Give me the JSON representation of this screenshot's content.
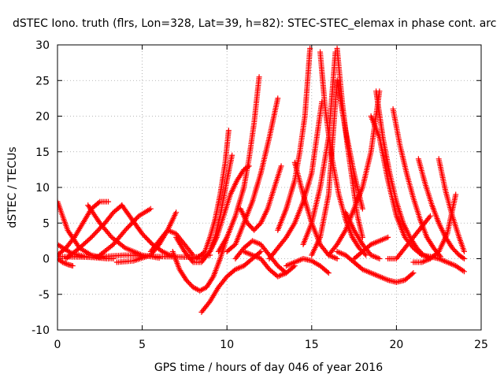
{
  "chart_data": {
    "type": "scatter",
    "title": "dSTEC Iono. truth (flrs, Lon=328, Lat=39, h=82): STEC-STEC_elemax in phase cont. arc",
    "xlabel": "GPS time / hours of day 046 of year 2016",
    "ylabel": "dSTEC  / TECUs",
    "xlim": [
      0,
      25
    ],
    "ylim": [
      -10,
      30
    ],
    "xticks": [
      0,
      5,
      10,
      15,
      20,
      25
    ],
    "yticks": [
      -10,
      -5,
      0,
      5,
      10,
      15,
      20,
      25,
      30
    ],
    "grid": true,
    "marker": "+",
    "color": "#ff0000",
    "series": [
      {
        "x": [
          0.0,
          0.6,
          1.3,
          2.0,
          2.7,
          3.3
        ],
        "y": [
          8.0,
          4.0,
          1.5,
          0.5,
          0.1,
          0.0
        ]
      },
      {
        "x": [
          0.0,
          0.3,
          0.6,
          0.9
        ],
        "y": [
          0.0,
          -0.5,
          -0.8,
          -1.0
        ]
      },
      {
        "x": [
          0.0,
          0.8,
          1.6,
          2.4,
          3.0
        ],
        "y": [
          2.0,
          0.8,
          0.3,
          0.1,
          0.0
        ]
      },
      {
        "x": [
          0.0,
          0.5,
          1.0,
          1.5,
          2.0,
          2.5,
          3.0
        ],
        "y": [
          0.5,
          1.5,
          3.0,
          5.0,
          7.0,
          8.0,
          8.0
        ]
      },
      {
        "x": [
          1.8,
          2.5,
          3.2,
          4.0,
          5.0,
          6.0
        ],
        "y": [
          7.5,
          5.0,
          3.0,
          1.5,
          0.5,
          0.1
        ]
      },
      {
        "x": [
          0.5,
          1.3,
          2.0,
          2.8,
          3.3,
          3.8
        ],
        "y": [
          0.0,
          1.5,
          3.0,
          5.0,
          6.5,
          7.5
        ]
      },
      {
        "x": [
          3.8,
          4.4,
          5.0,
          5.6,
          6.2,
          6.8
        ],
        "y": [
          7.5,
          5.5,
          3.5,
          2.0,
          1.0,
          0.3
        ]
      },
      {
        "x": [
          2.5,
          3.3,
          4.0,
          4.8,
          5.5
        ],
        "y": [
          0.5,
          2.0,
          4.0,
          6.0,
          7.0
        ]
      },
      {
        "x": [
          0.0,
          2.0,
          4.0,
          6.0,
          8.0,
          9.0
        ],
        "y": [
          0.3,
          0.2,
          0.5,
          0.3,
          0.2,
          0.5
        ]
      },
      {
        "x": [
          3.5,
          4.5,
          5.5,
          6.0,
          6.5,
          7.0
        ],
        "y": [
          -0.5,
          -0.3,
          0.5,
          2.0,
          4.0,
          6.5
        ]
      },
      {
        "x": [
          5.5,
          6.0,
          6.5,
          7.0,
          7.5,
          8.0
        ],
        "y": [
          1.0,
          2.5,
          4.0,
          3.5,
          2.0,
          0.5
        ]
      },
      {
        "x": [
          6.8,
          7.2,
          7.6,
          8.0,
          8.4,
          8.8,
          9.2,
          9.6,
          10.0
        ],
        "y": [
          1.0,
          -1.5,
          -3.0,
          -4.0,
          -4.5,
          -4.0,
          -2.5,
          0.0,
          3.0
        ]
      },
      {
        "x": [
          7.0,
          7.5,
          8.0,
          8.5,
          9.0,
          9.3,
          9.6,
          10.0,
          10.3
        ],
        "y": [
          3.0,
          1.0,
          -0.5,
          -0.5,
          1.0,
          3.0,
          6.0,
          11.0,
          14.5
        ]
      },
      {
        "x": [
          8.0,
          8.6,
          9.0,
          9.4,
          9.8,
          10.2,
          10.6,
          11.0,
          11.3
        ],
        "y": [
          0.0,
          0.0,
          1.0,
          3.0,
          6.0,
          9.0,
          11.0,
          12.5,
          13.0
        ]
      },
      {
        "x": [
          8.2,
          8.7,
          9.0,
          9.3,
          9.6,
          9.9,
          10.1
        ],
        "y": [
          0.0,
          1.0,
          3.0,
          5.5,
          9.0,
          13.5,
          18.0
        ]
      },
      {
        "x": [
          8.5,
          9.0,
          9.5,
          10.0,
          10.5,
          11.0,
          11.5,
          12.0
        ],
        "y": [
          -7.5,
          -6.0,
          -4.0,
          -2.5,
          -1.5,
          -1.0,
          0.0,
          1.0
        ]
      },
      {
        "x": [
          9.5,
          10.0,
          10.5,
          11.0,
          11.3,
          11.6,
          11.9
        ],
        "y": [
          1.0,
          3.0,
          6.0,
          10.0,
          14.0,
          19.0,
          25.5
        ]
      },
      {
        "x": [
          10.0,
          10.5,
          11.0,
          11.5,
          12.0,
          12.5,
          13.0
        ],
        "y": [
          1.0,
          2.0,
          5.0,
          8.0,
          12.0,
          17.0,
          22.5
        ]
      },
      {
        "x": [
          10.8,
          11.2,
          11.6,
          12.0,
          12.4,
          12.8,
          13.2
        ],
        "y": [
          7.0,
          5.0,
          4.0,
          5.0,
          7.0,
          10.0,
          13.0
        ]
      },
      {
        "x": [
          10.5,
          11.0,
          11.5,
          12.0,
          12.5,
          13.0,
          13.5
        ],
        "y": [
          0.0,
          1.5,
          2.5,
          2.0,
          0.5,
          -1.0,
          -2.0
        ]
      },
      {
        "x": [
          11.0,
          11.5,
          12.0,
          12.5,
          13.0,
          13.5,
          14.0
        ],
        "y": [
          1.0,
          0.5,
          0.0,
          -1.5,
          -2.5,
          -2.0,
          -1.0
        ]
      },
      {
        "x": [
          12.5,
          13.0,
          13.5,
          14.0,
          14.5,
          15.0,
          15.3,
          15.6
        ],
        "y": [
          0.0,
          1.5,
          3.0,
          5.0,
          8.0,
          12.0,
          17.0,
          22.0
        ]
      },
      {
        "x": [
          13.0,
          13.5,
          14.0,
          14.3,
          14.6,
          14.9
        ],
        "y": [
          4.0,
          7.0,
          11.0,
          15.0,
          20.0,
          29.5
        ]
      },
      {
        "x": [
          13.5,
          14.0,
          14.5,
          15.0,
          15.5,
          16.0
        ],
        "y": [
          -1.0,
          -0.5,
          0.0,
          -0.3,
          -1.0,
          -2.0
        ]
      },
      {
        "x": [
          14.0,
          14.5,
          15.0,
          15.5,
          16.0,
          16.5
        ],
        "y": [
          13.5,
          9.0,
          5.0,
          2.0,
          0.5,
          0.0
        ]
      },
      {
        "x": [
          14.5,
          15.0,
          15.5,
          16.0,
          16.4
        ],
        "y": [
          2.0,
          5.0,
          10.0,
          17.0,
          29.0
        ]
      },
      {
        "x": [
          15.0,
          15.5,
          16.0,
          16.5,
          17.0,
          17.5,
          18.0
        ],
        "y": [
          0.5,
          3.0,
          9.0,
          25.0,
          18.0,
          12.0,
          7.0
        ]
      },
      {
        "x": [
          15.5,
          15.8,
          16.2,
          16.6,
          17.0,
          17.4,
          17.8,
          18.2
        ],
        "y": [
          29.0,
          21.0,
          14.0,
          9.0,
          5.5,
          3.0,
          1.5,
          0.5
        ]
      },
      {
        "x": [
          16.5,
          16.8,
          17.1,
          17.4,
          17.7,
          18.0
        ],
        "y": [
          29.5,
          22.0,
          16.0,
          11.0,
          6.0,
          3.0
        ]
      },
      {
        "x": [
          16.0,
          16.5,
          17.0,
          17.5,
          18.0,
          18.5,
          19.0
        ],
        "y": [
          0.5,
          2.0,
          4.0,
          7.0,
          10.0,
          15.0,
          23.5
        ]
      },
      {
        "x": [
          16.5,
          17.0,
          17.5,
          18.0,
          18.5,
          19.0,
          19.5,
          20.0,
          20.5,
          21.0
        ],
        "y": [
          1.0,
          0.5,
          -0.5,
          -1.5,
          -2.0,
          -2.5,
          -3.0,
          -3.3,
          -3.0,
          -2.0
        ]
      },
      {
        "x": [
          17.0,
          17.5,
          18.0,
          18.5,
          19.0
        ],
        "y": [
          6.5,
          4.0,
          2.0,
          0.5,
          0.0
        ]
      },
      {
        "x": [
          17.5,
          18.0,
          18.5,
          19.0,
          19.5
        ],
        "y": [
          0.0,
          1.0,
          2.0,
          2.5,
          3.0
        ]
      },
      {
        "x": [
          18.5,
          19.0,
          19.5,
          20.0,
          20.5,
          21.0,
          21.5
        ],
        "y": [
          20.0,
          17.0,
          11.0,
          6.0,
          3.0,
          1.5,
          0.5
        ]
      },
      {
        "x": [
          18.8,
          19.2,
          19.6,
          20.0,
          20.4,
          20.8,
          21.2,
          21.6,
          22.0
        ],
        "y": [
          23.5,
          17.0,
          12.0,
          8.0,
          5.0,
          3.0,
          1.5,
          0.5,
          0.0
        ]
      },
      {
        "x": [
          19.8,
          20.2,
          20.6,
          21.0,
          21.4,
          21.8,
          22.2,
          22.6
        ],
        "y": [
          21.0,
          16.0,
          12.0,
          8.5,
          5.5,
          3.0,
          1.5,
          0.3
        ]
      },
      {
        "x": [
          19.5,
          20.0,
          20.5,
          21.0,
          21.5,
          22.0
        ],
        "y": [
          0.0,
          0.0,
          1.5,
          3.0,
          4.5,
          6.0
        ]
      },
      {
        "x": [
          21.3,
          21.7,
          22.1,
          22.5,
          22.9,
          23.3,
          23.7,
          24.0
        ],
        "y": [
          14.0,
          10.5,
          7.5,
          5.0,
          3.0,
          1.5,
          0.5,
          0.0
        ]
      },
      {
        "x": [
          22.5,
          22.9,
          23.3,
          23.7,
          24.0
        ],
        "y": [
          14.0,
          9.5,
          6.0,
          3.0,
          1.0
        ]
      },
      {
        "x": [
          21.0,
          21.5,
          22.0,
          22.5,
          23.0,
          23.5
        ],
        "y": [
          -0.5,
          -0.5,
          0.0,
          1.0,
          3.5,
          9.0
        ]
      },
      {
        "x": [
          21.5,
          22.0,
          22.5,
          23.0,
          23.5,
          24.0
        ],
        "y": [
          0.5,
          0.3,
          0.0,
          -0.5,
          -1.0,
          -1.8
        ]
      }
    ]
  }
}
